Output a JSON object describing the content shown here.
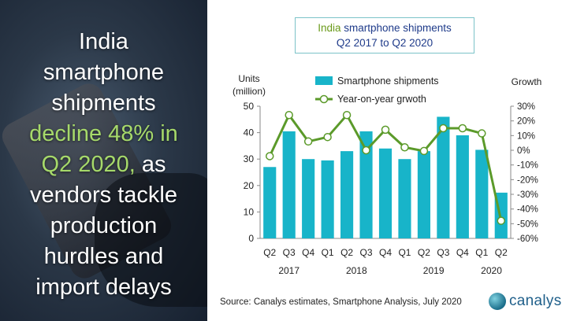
{
  "headline": {
    "line1": "India",
    "line2": "smartphone",
    "line3": "shipments",
    "line4_highlight": "decline 48% in",
    "line5_highlight": "Q2 2020,",
    "line5_rest": " as",
    "line6": "vendors tackle",
    "line7": "production",
    "line8": "hurdles and",
    "line9": "import delays"
  },
  "title": {
    "part1_highlight": "India",
    "part1_rest": " smartphone shipments",
    "part2": "Q2 2017 to Q2 2020"
  },
  "source": "Source: Canalys estimates, Smartphone Analysis, July 2020",
  "logo": {
    "text": "canalys",
    "icon": "canalys-logo-icon"
  },
  "colors": {
    "bar": "#18b4c9",
    "line": "#5b9a2a",
    "marker_fill": "#ffffff",
    "highlight_green": "#a6d96a",
    "title_blue": "#1f3b8a"
  },
  "chart_data": {
    "type": "bar",
    "categories": [
      "Q2",
      "Q3",
      "Q4",
      "Q1",
      "Q2",
      "Q3",
      "Q4",
      "Q1",
      "Q2",
      "Q3",
      "Q4",
      "Q1",
      "Q2"
    ],
    "year_labels": [
      {
        "label": "2017",
        "from": 0,
        "to": 2
      },
      {
        "label": "2018",
        "from": 3,
        "to": 6
      },
      {
        "label": "2019",
        "from": 7,
        "to": 10
      },
      {
        "label": "2020",
        "from": 11,
        "to": 12
      }
    ],
    "series": [
      {
        "name": "Smartphone shipments",
        "type": "bar",
        "axis": "left",
        "values": [
          27,
          40.5,
          30,
          29.5,
          33,
          40.5,
          34,
          30,
          33,
          46,
          39,
          33.5,
          17.3
        ]
      },
      {
        "name": "Year-on-year grwoth",
        "type": "line",
        "axis": "right",
        "values": [
          -4,
          24,
          6,
          9,
          24,
          0,
          14,
          2,
          -0.5,
          15,
          15,
          11.5,
          -48
        ]
      }
    ],
    "ylabel_left": "Units\n(million)",
    "ylim_left": [
      0,
      50
    ],
    "yticks_left": [
      "0",
      "10",
      "20",
      "30",
      "40",
      "50"
    ],
    "ylabel_right": "Growth",
    "ylim_right": [
      -60,
      30
    ],
    "yticks_right": [
      "-60%",
      "-50%",
      "-40%",
      "-30%",
      "-20%",
      "-10%",
      "0%",
      "10%",
      "20%",
      "30%"
    ],
    "legend_placement": "top-center",
    "grid": false
  }
}
